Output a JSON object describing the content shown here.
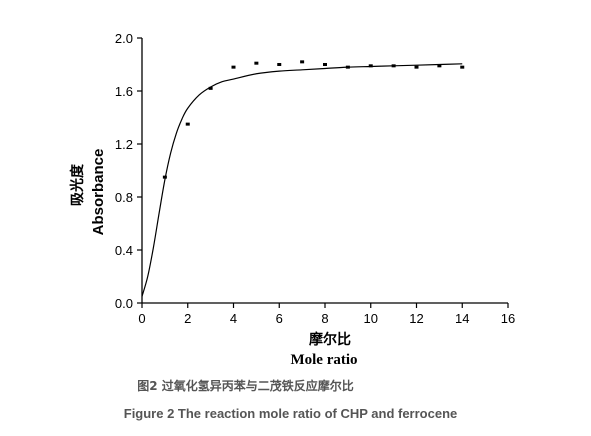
{
  "chart_data": {
    "type": "scatter",
    "x_tick_labels": [
      "0",
      "2",
      "4",
      "6",
      "8",
      "10",
      "12",
      "14",
      "16"
    ],
    "y_tick_labels": [
      "0.0",
      "0.4",
      "0.8",
      "1.2",
      "1.6",
      "2.0"
    ],
    "xlim": [
      0,
      16
    ],
    "ylim": [
      0,
      2.0
    ],
    "xlabel_cn": "摩尔比",
    "xlabel_en": "Mole ratio",
    "ylabel_cn": "吸光度",
    "ylabel_en": "Absorbance",
    "series": [
      {
        "marker": "point",
        "x": [
          1,
          2,
          3,
          4,
          5,
          6,
          7,
          8,
          9,
          10,
          11,
          12,
          13,
          14
        ],
        "y": [
          0.95,
          1.35,
          1.62,
          1.78,
          1.81,
          1.8,
          1.82,
          1.8,
          1.78,
          1.79,
          1.79,
          1.78,
          1.79,
          1.78
        ]
      },
      {
        "marker": "line",
        "x": [
          0,
          0.25,
          0.5,
          0.75,
          1,
          1.25,
          1.5,
          1.75,
          2,
          2.5,
          3,
          3.5,
          4,
          5,
          6,
          7,
          8,
          9,
          10,
          11,
          12,
          13,
          14
        ],
        "y": [
          0.05,
          0.2,
          0.42,
          0.68,
          0.93,
          1.13,
          1.28,
          1.39,
          1.47,
          1.57,
          1.63,
          1.67,
          1.69,
          1.73,
          1.75,
          1.76,
          1.77,
          1.78,
          1.785,
          1.79,
          1.795,
          1.8,
          1.805
        ]
      }
    ]
  },
  "caption": {
    "cn": "图2 过氧化氢异丙苯与二茂铁反应摩尔比",
    "en": "Figure 2 The reaction mole ratio of CHP and ferrocene"
  }
}
